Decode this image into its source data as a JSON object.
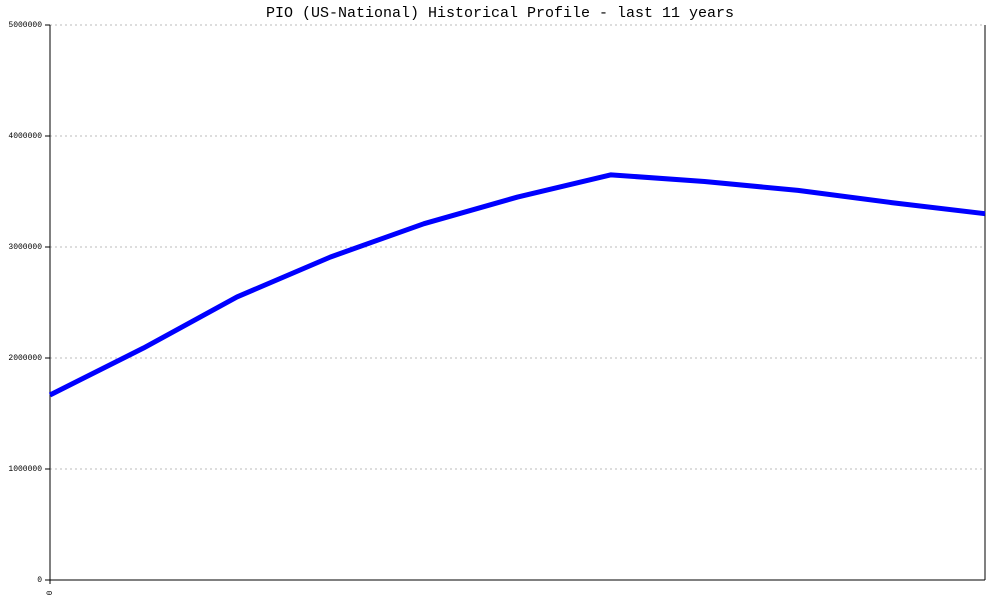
{
  "chart_data": {
    "type": "line",
    "title": "PIO (US-National) Historical Profile - last 11 years",
    "x": [
      0,
      1,
      2,
      3,
      4,
      5,
      6,
      7,
      8,
      9,
      10
    ],
    "series": [
      {
        "name": "PIO",
        "color": "#0000ff",
        "values": [
          1667000,
          2090000,
          2550000,
          2910000,
          3210000,
          3450000,
          3650000,
          3590000,
          3510000,
          3400000,
          3300000
        ]
      }
    ],
    "xlim": [
      0,
      10
    ],
    "xticks": [
      0
    ],
    "ylim": [
      0,
      5000000
    ],
    "yticks": [
      0,
      1000000,
      2000000,
      3000000,
      4000000,
      5000000
    ],
    "grid": true
  }
}
